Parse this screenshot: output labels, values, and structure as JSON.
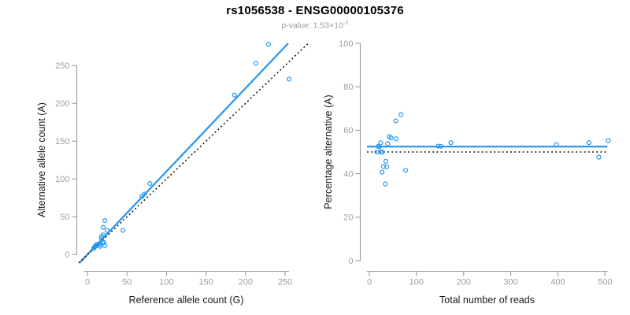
{
  "header": {
    "title": "rs1056538 - ENSG00000105376",
    "subtitle_prefix": "p-value: 1.53×10",
    "subtitle_exponent": "-2"
  },
  "colors": {
    "accent_blue": "#2B99F0",
    "reference_black": "#1a1a1a",
    "axis_gray": "#9b9b9b",
    "tick_label_gray": "#9e9e9e"
  },
  "chart_data": [
    {
      "type": "scatter",
      "panel": "left",
      "xlabel": "Reference allele count (G)",
      "ylabel": "Alternative allele count (A)",
      "xticks": [
        0,
        50,
        100,
        150,
        200,
        250
      ],
      "yticks": [
        0,
        50,
        100,
        150,
        200,
        250
      ],
      "xlim": [
        -11,
        280
      ],
      "ylim": [
        -11,
        280
      ],
      "grid": false,
      "legend": "none",
      "points": [
        [
          22,
          45
        ],
        [
          20,
          36
        ],
        [
          20,
          26
        ],
        [
          18,
          24
        ],
        [
          25,
          32
        ],
        [
          11,
          13
        ],
        [
          18,
          21
        ],
        [
          10,
          11
        ],
        [
          14,
          14
        ],
        [
          12,
          12
        ],
        [
          19,
          16
        ],
        [
          17,
          13
        ],
        [
          21,
          16
        ],
        [
          45,
          32
        ],
        [
          16,
          11
        ],
        [
          22,
          12
        ],
        [
          8,
          8
        ],
        [
          9,
          10
        ],
        [
          69,
          77
        ],
        [
          72,
          80
        ],
        [
          79,
          94
        ],
        [
          186,
          211
        ],
        [
          213,
          253
        ],
        [
          229,
          278
        ],
        [
          255,
          232
        ]
      ],
      "lines": [
        {
          "name": "regression-line",
          "slope": 1.1,
          "intercept": 0,
          "style": "solid",
          "color_key": "accent_blue"
        },
        {
          "name": "identity-line",
          "slope": 1,
          "intercept": 0,
          "style": "dotted",
          "color_key": "reference_black"
        }
      ]
    },
    {
      "type": "scatter",
      "panel": "right",
      "xlabel": "Total number of reads",
      "ylabel": "Percentage alternative (A)",
      "xticks": [
        0,
        100,
        200,
        300,
        400,
        500
      ],
      "yticks": [
        0,
        20,
        40,
        60,
        80,
        100
      ],
      "xlim": [
        -20,
        525
      ],
      "ylim": [
        0,
        100
      ],
      "grid": false,
      "legend": "none",
      "points": [
        [
          67,
          67.2
        ],
        [
          56,
          64.3
        ],
        [
          46,
          56.5
        ],
        [
          42,
          57.1
        ],
        [
          57,
          56.1
        ],
        [
          24,
          54.2
        ],
        [
          39,
          53.8
        ],
        [
          21,
          52.4
        ],
        [
          28,
          50
        ],
        [
          24,
          50
        ],
        [
          35,
          45.7
        ],
        [
          30,
          43.3
        ],
        [
          37,
          43.2
        ],
        [
          77,
          41.6
        ],
        [
          27,
          40.7
        ],
        [
          34,
          35.3
        ],
        [
          16,
          50
        ],
        [
          19,
          52.6
        ],
        [
          146,
          52.7
        ],
        [
          152,
          52.6
        ],
        [
          173,
          54.3
        ],
        [
          397,
          53.4
        ],
        [
          466,
          54.3
        ],
        [
          507,
          55.2
        ],
        [
          487,
          47.6
        ]
      ],
      "lines": [
        {
          "name": "mean-line",
          "value": 52.5,
          "style": "solid",
          "color_key": "accent_blue"
        },
        {
          "name": "reference-line",
          "value": 50,
          "style": "dotted",
          "color_key": "reference_black"
        }
      ]
    }
  ]
}
